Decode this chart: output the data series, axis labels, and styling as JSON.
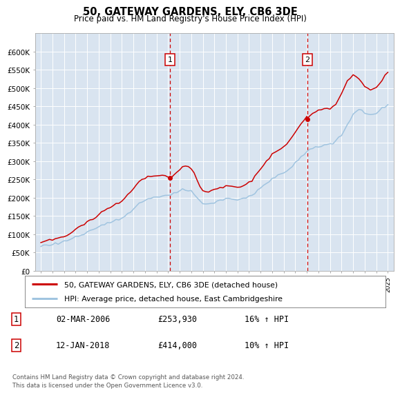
{
  "title": "50, GATEWAY GARDENS, ELY, CB6 3DE",
  "subtitle": "Price paid vs. HM Land Registry's House Price Index (HPI)",
  "ylim": [
    0,
    650000
  ],
  "yticks": [
    0,
    50000,
    100000,
    150000,
    200000,
    250000,
    300000,
    350000,
    400000,
    450000,
    500000,
    550000,
    600000
  ],
  "xlim_start": 1994.5,
  "xlim_end": 2025.5,
  "background_color": "#d9e4f0",
  "line1_color": "#cc0000",
  "line2_color": "#a0c4e0",
  "vline_color": "#cc0000",
  "sale1_x": 2006.16,
  "sale1_y": 253930,
  "sale2_x": 2018.04,
  "sale2_y": 414000,
  "legend_line1": "50, GATEWAY GARDENS, ELY, CB6 3DE (detached house)",
  "legend_line2": "HPI: Average price, detached house, East Cambridgeshire",
  "table_row1": [
    "1",
    "02-MAR-2006",
    "£253,930",
    "16% ↑ HPI"
  ],
  "table_row2": [
    "2",
    "12-JAN-2018",
    "£414,000",
    "10% ↑ HPI"
  ],
  "footer": "Contains HM Land Registry data © Crown copyright and database right 2024.\nThis data is licensed under the Open Government Licence v3.0.",
  "hpi_x": [
    1995.0,
    1995.25,
    1995.5,
    1995.75,
    1996.0,
    1996.25,
    1996.5,
    1996.75,
    1997.0,
    1997.25,
    1997.5,
    1997.75,
    1998.0,
    1998.25,
    1998.5,
    1998.75,
    1999.0,
    1999.25,
    1999.5,
    1999.75,
    2000.0,
    2000.25,
    2000.5,
    2000.75,
    2001.0,
    2001.25,
    2001.5,
    2001.75,
    2002.0,
    2002.25,
    2002.5,
    2002.75,
    2003.0,
    2003.25,
    2003.5,
    2003.75,
    2004.0,
    2004.25,
    2004.5,
    2004.75,
    2005.0,
    2005.25,
    2005.5,
    2005.75,
    2006.0,
    2006.25,
    2006.5,
    2006.75,
    2007.0,
    2007.25,
    2007.5,
    2007.75,
    2008.0,
    2008.25,
    2008.5,
    2008.75,
    2009.0,
    2009.25,
    2009.5,
    2009.75,
    2010.0,
    2010.25,
    2010.5,
    2010.75,
    2011.0,
    2011.25,
    2011.5,
    2011.75,
    2012.0,
    2012.25,
    2012.5,
    2012.75,
    2013.0,
    2013.25,
    2013.5,
    2013.75,
    2014.0,
    2014.25,
    2014.5,
    2014.75,
    2015.0,
    2015.25,
    2015.5,
    2015.75,
    2016.0,
    2016.25,
    2016.5,
    2016.75,
    2017.0,
    2017.25,
    2017.5,
    2017.75,
    2018.0,
    2018.25,
    2018.5,
    2018.75,
    2019.0,
    2019.25,
    2019.5,
    2019.75,
    2020.0,
    2020.25,
    2020.5,
    2020.75,
    2021.0,
    2021.25,
    2021.5,
    2021.75,
    2022.0,
    2022.25,
    2022.5,
    2022.75,
    2023.0,
    2023.25,
    2023.5,
    2023.75,
    2024.0,
    2024.25,
    2024.5,
    2024.75,
    2025.0
  ],
  "hpi_y": [
    68000,
    69000,
    70000,
    71000,
    72000,
    74000,
    76000,
    78000,
    80000,
    83000,
    86000,
    89000,
    92000,
    95000,
    98000,
    100000,
    103000,
    107000,
    111000,
    115000,
    119000,
    123000,
    127000,
    130000,
    133000,
    136000,
    139000,
    141000,
    144000,
    150000,
    157000,
    164000,
    171000,
    178000,
    184000,
    188000,
    192000,
    196000,
    199000,
    201000,
    203000,
    204000,
    205000,
    205500,
    206000,
    207000,
    210000,
    213000,
    217000,
    221000,
    222000,
    220000,
    217000,
    210000,
    200000,
    190000,
    182000,
    180000,
    181000,
    183000,
    186000,
    190000,
    193000,
    195000,
    196000,
    197000,
    196000,
    195000,
    195000,
    196000,
    198000,
    200000,
    203000,
    208000,
    214000,
    220000,
    227000,
    234000,
    240000,
    246000,
    251000,
    256000,
    260000,
    264000,
    268000,
    274000,
    280000,
    287000,
    294000,
    302000,
    311000,
    319000,
    326000,
    331000,
    335000,
    338000,
    340000,
    342000,
    344000,
    346000,
    347000,
    350000,
    355000,
    362000,
    370000,
    385000,
    400000,
    415000,
    428000,
    438000,
    442000,
    438000,
    432000,
    428000,
    426000,
    428000,
    432000,
    438000,
    444000,
    450000,
    455000
  ],
  "price_x": [
    1995.0,
    1995.25,
    1995.5,
    1995.75,
    1996.0,
    1996.25,
    1996.5,
    1996.75,
    1997.0,
    1997.25,
    1997.5,
    1997.75,
    1998.0,
    1998.25,
    1998.5,
    1998.75,
    1999.0,
    1999.25,
    1999.5,
    1999.75,
    2000.0,
    2000.25,
    2000.5,
    2000.75,
    2001.0,
    2001.25,
    2001.5,
    2001.75,
    2002.0,
    2002.25,
    2002.5,
    2002.75,
    2003.0,
    2003.25,
    2003.5,
    2003.75,
    2004.0,
    2004.25,
    2004.5,
    2004.75,
    2005.0,
    2005.25,
    2005.5,
    2005.75,
    2006.0,
    2006.16,
    2006.25,
    2006.5,
    2006.75,
    2007.0,
    2007.25,
    2007.5,
    2007.75,
    2008.0,
    2008.25,
    2008.5,
    2008.75,
    2009.0,
    2009.25,
    2009.5,
    2009.75,
    2010.0,
    2010.25,
    2010.5,
    2010.75,
    2011.0,
    2011.25,
    2011.5,
    2011.75,
    2012.0,
    2012.25,
    2012.5,
    2012.75,
    2013.0,
    2013.25,
    2013.5,
    2013.75,
    2014.0,
    2014.25,
    2014.5,
    2014.75,
    2015.0,
    2015.25,
    2015.5,
    2015.75,
    2016.0,
    2016.25,
    2016.5,
    2016.75,
    2017.0,
    2017.25,
    2017.5,
    2017.75,
    2018.0,
    2018.04,
    2018.25,
    2018.5,
    2018.75,
    2019.0,
    2019.25,
    2019.5,
    2019.75,
    2020.0,
    2020.25,
    2020.5,
    2020.75,
    2021.0,
    2021.25,
    2021.5,
    2021.75,
    2022.0,
    2022.25,
    2022.5,
    2022.75,
    2023.0,
    2023.25,
    2023.5,
    2023.75,
    2024.0,
    2024.25,
    2024.5,
    2024.75,
    2025.0
  ],
  "price_y": [
    78000,
    79500,
    81000,
    82500,
    84000,
    86000,
    88500,
    91000,
    94000,
    98000,
    103000,
    108000,
    113000,
    118000,
    123000,
    127000,
    131000,
    136000,
    141000,
    147000,
    153000,
    159000,
    164000,
    169000,
    173000,
    177000,
    181000,
    185000,
    190000,
    198000,
    208000,
    218000,
    228000,
    237000,
    244000,
    249000,
    253000,
    256000,
    258000,
    259000,
    260000,
    260000,
    260000,
    259000,
    258000,
    253930,
    256000,
    262000,
    270000,
    278000,
    285000,
    288000,
    285000,
    278000,
    265000,
    248000,
    232000,
    220000,
    216000,
    215000,
    217000,
    220000,
    225000,
    229000,
    232000,
    234000,
    234000,
    232000,
    229000,
    228000,
    229000,
    232000,
    237000,
    243000,
    251000,
    260000,
    269000,
    279000,
    289000,
    299000,
    308000,
    316000,
    323000,
    329000,
    334000,
    340000,
    348000,
    357000,
    367000,
    378000,
    390000,
    403000,
    414500,
    424000,
    414000,
    422000,
    430000,
    436000,
    440000,
    443000,
    445000,
    445000,
    443000,
    448000,
    458000,
    472000,
    488000,
    505000,
    520000,
    530000,
    535000,
    532000,
    525000,
    515000,
    505000,
    498000,
    495000,
    497000,
    502000,
    510000,
    520000,
    535000,
    545000
  ]
}
